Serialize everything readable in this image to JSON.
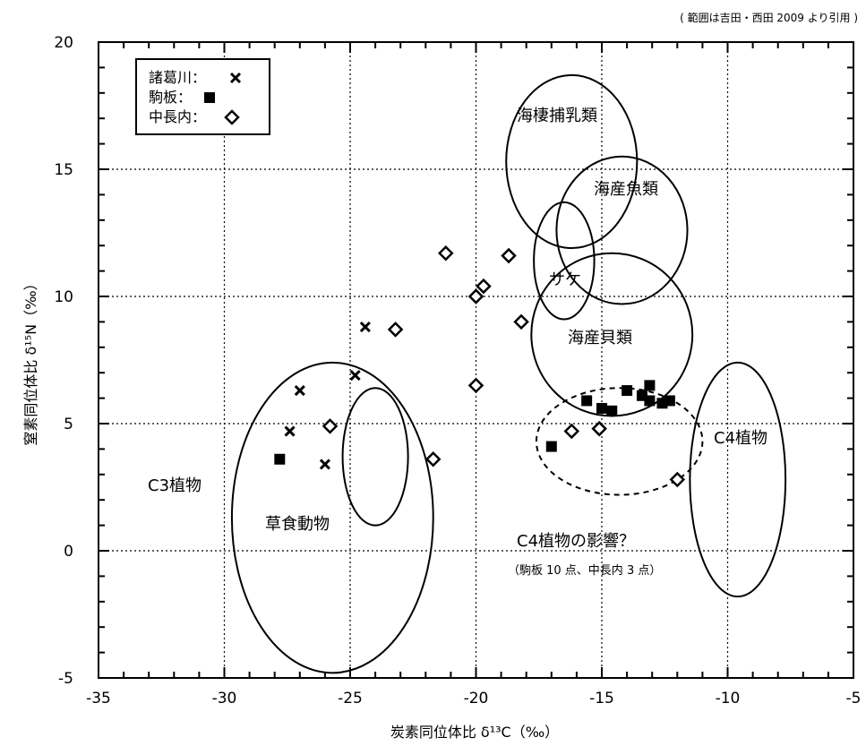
{
  "chart_data": {
    "type": "scatter",
    "note": "( 範囲は吉田・西田 2009 より引用 )",
    "xlabel": "炭素同位体比 δ¹³C（‰）",
    "ylabel": "窒素同位体比 δ¹⁵N（‰）",
    "xlim": [
      -35,
      -5
    ],
    "ylim": [
      -5,
      20
    ],
    "x_ticks": [
      -35,
      -30,
      -25,
      -20,
      -15,
      -10,
      -5
    ],
    "y_ticks": [
      -5,
      0,
      5,
      10,
      15,
      20
    ],
    "grid": "dotted",
    "legend": {
      "placement": "top-left",
      "entries": [
        {
          "name": "諸葛川：",
          "marker": "x"
        },
        {
          "name": "駒板：",
          "marker": "filled-square"
        },
        {
          "name": "中長内：",
          "marker": "open-diamond"
        }
      ]
    },
    "series": [
      {
        "name": "諸葛川",
        "marker": "x",
        "points": [
          [
            -27.0,
            6.3
          ],
          [
            -27.4,
            4.7
          ],
          [
            -26.0,
            3.4
          ],
          [
            -24.4,
            8.8
          ],
          [
            -24.8,
            6.9
          ]
        ]
      },
      {
        "name": "駒板",
        "marker": "filled-square",
        "points": [
          [
            -27.8,
            3.6
          ],
          [
            -17.0,
            4.1
          ],
          [
            -15.6,
            5.9
          ],
          [
            -15.0,
            5.6
          ],
          [
            -14.6,
            5.5
          ],
          [
            -14.0,
            6.3
          ],
          [
            -13.4,
            6.1
          ],
          [
            -13.1,
            6.5
          ],
          [
            -13.1,
            5.9
          ],
          [
            -12.6,
            5.8
          ],
          [
            -12.3,
            5.9
          ]
        ]
      },
      {
        "name": "中長内",
        "marker": "open-diamond",
        "points": [
          [
            -25.8,
            4.9
          ],
          [
            -23.2,
            8.7
          ],
          [
            -21.7,
            3.6
          ],
          [
            -21.2,
            11.7
          ],
          [
            -20.0,
            10.0
          ],
          [
            -19.7,
            10.4
          ],
          [
            -20.0,
            6.5
          ],
          [
            -18.7,
            11.6
          ],
          [
            -18.2,
            9.0
          ],
          [
            -16.2,
            4.7
          ],
          [
            -15.1,
            4.8
          ],
          [
            -12.0,
            2.8
          ]
        ]
      }
    ],
    "regions": [
      {
        "label": "C3植物",
        "cx": -25.7,
        "cy": 1.3,
        "rx": 4.0,
        "ry": 6.1,
        "dashed": false
      },
      {
        "label": "草食動物",
        "cx": -24.0,
        "cy": 3.7,
        "rx": 1.3,
        "ry": 2.7,
        "dashed": false
      },
      {
        "label": "海棲捕乳類",
        "cx": -16.2,
        "cy": 15.3,
        "rx": 2.6,
        "ry": 3.4,
        "dashed": false
      },
      {
        "label": "海産魚類",
        "cx": -14.2,
        "cy": 12.6,
        "rx": 2.6,
        "ry": 2.9,
        "dashed": false
      },
      {
        "label": "サケ",
        "cx": -16.5,
        "cy": 11.4,
        "rx": 1.2,
        "ry": 2.3,
        "dashed": false
      },
      {
        "label": "海産貝類",
        "cx": -14.6,
        "cy": 8.5,
        "rx": 3.2,
        "ry": 3.2,
        "dashed": false
      },
      {
        "label": "C4植物",
        "cx": -9.6,
        "cy": 2.8,
        "rx": 1.9,
        "ry": 4.6,
        "dashed": false
      },
      {
        "label": "C4植物の影響？",
        "sublabel": "（駒板 10 点、中長内 3 点）",
        "cx": -14.3,
        "cy": 4.3,
        "rx": 3.3,
        "ry": 2.1,
        "dashed": true
      }
    ]
  }
}
